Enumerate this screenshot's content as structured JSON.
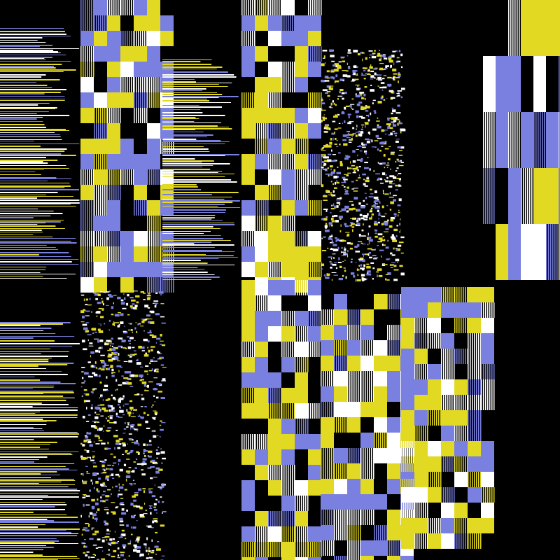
{
  "palette": {
    "background": "#000000",
    "yellow": "#e2d922",
    "blue": "#7a80e0",
    "white": "#ffffff",
    "black": "#000000"
  }
}
